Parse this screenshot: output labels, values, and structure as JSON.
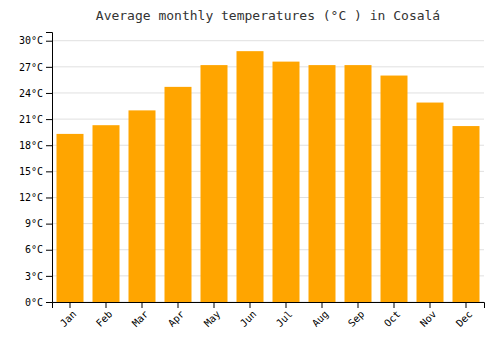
{
  "chart_data": {
    "type": "bar",
    "title": "Average monthly temperatures (°C ) in Cosalá",
    "categories": [
      "Jan",
      "Feb",
      "Mar",
      "Apr",
      "May",
      "Jun",
      "Jul",
      "Aug",
      "Sep",
      "Oct",
      "Nov",
      "Dec"
    ],
    "values": [
      19.3,
      20.3,
      22.0,
      24.7,
      27.2,
      28.8,
      27.6,
      27.2,
      27.2,
      26.0,
      22.9,
      20.2
    ],
    "color": "#FFA500",
    "ylim": [
      0,
      31
    ],
    "yticks": [
      {
        "value": 0,
        "label": "0°C"
      },
      {
        "value": 3,
        "label": "3°C"
      },
      {
        "value": 6,
        "label": "6°C"
      },
      {
        "value": 9,
        "label": "9°C"
      },
      {
        "value": 12,
        "label": "12°C"
      },
      {
        "value": 15,
        "label": "15°C"
      },
      {
        "value": 18,
        "label": "18°C"
      },
      {
        "value": 21,
        "label": "21°C"
      },
      {
        "value": 24,
        "label": "24°C"
      },
      {
        "value": 27,
        "label": "27°C"
      },
      {
        "value": 30,
        "label": "30°C"
      }
    ],
    "grid": true
  }
}
